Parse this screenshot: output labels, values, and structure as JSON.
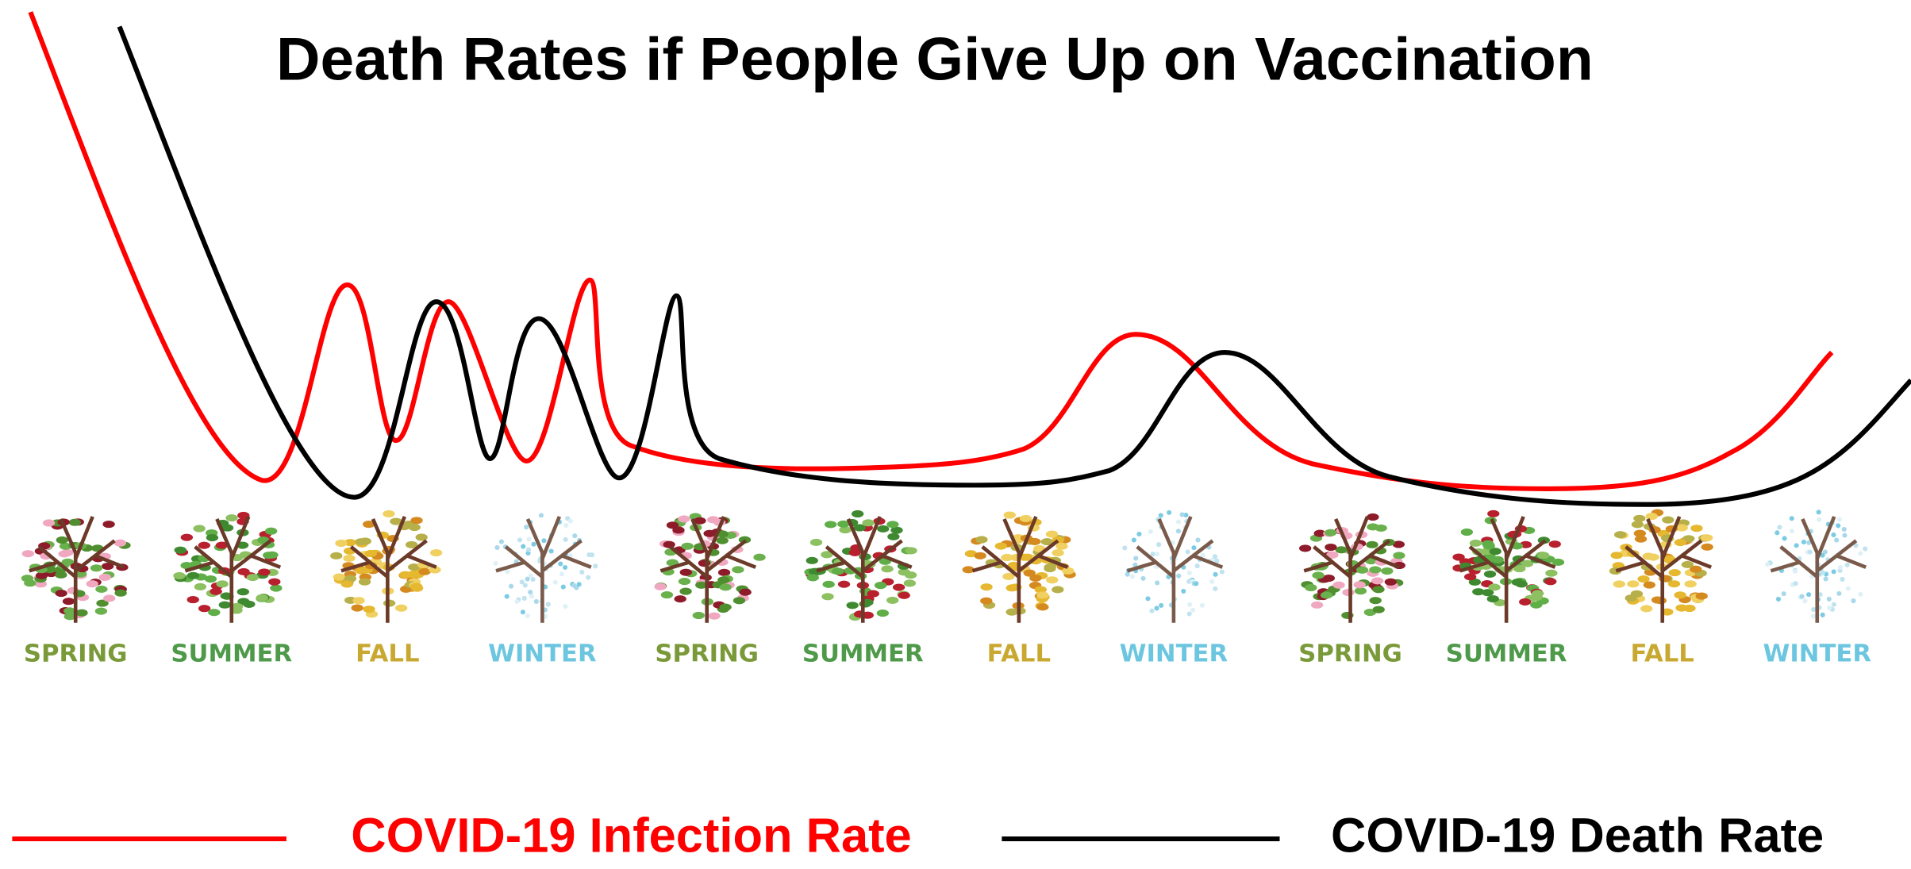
{
  "title": "Death Rates if People Give Up on Vaccination",
  "seasons": [
    "SPRING",
    "SUMMER",
    "FALL",
    "WINTER",
    "SPRING",
    "SUMMER",
    "FALL",
    "WINTER",
    "SPRING",
    "SUMMER",
    "FALL",
    "WINTER"
  ],
  "legend": [
    {
      "label": "COVID-19 Infection Rate",
      "color": "#ff0000"
    },
    {
      "label": "COVID-19 Death Rate",
      "color": "#000000"
    }
  ]
}
